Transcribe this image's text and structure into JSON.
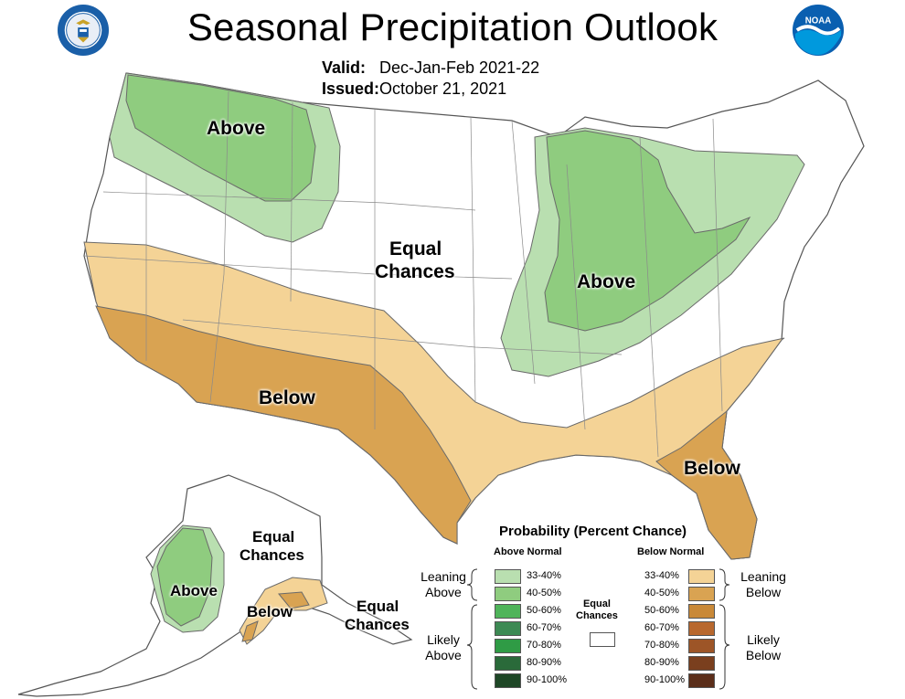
{
  "header": {
    "title": "Seasonal Precipitation Outlook",
    "valid_label": "Valid:",
    "valid_value": "Dec-Jan-Feb 2021-22",
    "issued_label": "Issued:",
    "issued_value": "October 21, 2021"
  },
  "logos": {
    "left_seal_text": "DEPARTMENT OF COMMERCE",
    "right_logo_text": "NOAA"
  },
  "map_labels": {
    "nw_above": "Above",
    "central_equal_1": "Equal",
    "central_equal_2": "Chances",
    "great_lakes_above": "Above",
    "sw_below": "Below",
    "se_below": "Below",
    "ak_equal_1": "Equal",
    "ak_equal_2": "Chances",
    "ak_above": "Above",
    "ak_below": "Below",
    "ak_se_equal_1": "Equal",
    "ak_se_equal_2": "Chances"
  },
  "colors": {
    "above_33_40": "#b9dfb0",
    "above_40_50": "#8fcc7f",
    "below_33_40": "#f4d396",
    "below_40_50": "#d9a352",
    "equal_chances": "#ffffff"
  },
  "legend": {
    "title": "Probability (Percent Chance)",
    "above_header": "Above Normal",
    "below_header": "Below Normal",
    "leaning_above": [
      "Leaning",
      "Above"
    ],
    "likely_above": [
      "Likely",
      "Above"
    ],
    "leaning_below": [
      "Leaning",
      "Below"
    ],
    "likely_below": [
      "Likely",
      "Below"
    ],
    "equal_chances": [
      "Equal",
      "Chances"
    ],
    "above": [
      {
        "label": "33-40%",
        "color": "#b9dfb0"
      },
      {
        "label": "40-50%",
        "color": "#8fcc7f"
      },
      {
        "label": "50-60%",
        "color": "#4fb45a"
      },
      {
        "label": "60-70%",
        "color": "#3d8a54"
      },
      {
        "label": "70-80%",
        "color": "#2f9b45"
      },
      {
        "label": "80-90%",
        "color": "#2a6a3a"
      },
      {
        "label": "90-100%",
        "color": "#1e4726"
      }
    ],
    "below": [
      {
        "label": "33-40%",
        "color": "#f4d396"
      },
      {
        "label": "40-50%",
        "color": "#d9a352"
      },
      {
        "label": "50-60%",
        "color": "#c98938"
      },
      {
        "label": "60-70%",
        "color": "#b8682e"
      },
      {
        "label": "70-80%",
        "color": "#9d5527"
      },
      {
        "label": "80-90%",
        "color": "#7a3f1e"
      },
      {
        "label": "90-100%",
        "color": "#5b2e1a"
      }
    ]
  }
}
